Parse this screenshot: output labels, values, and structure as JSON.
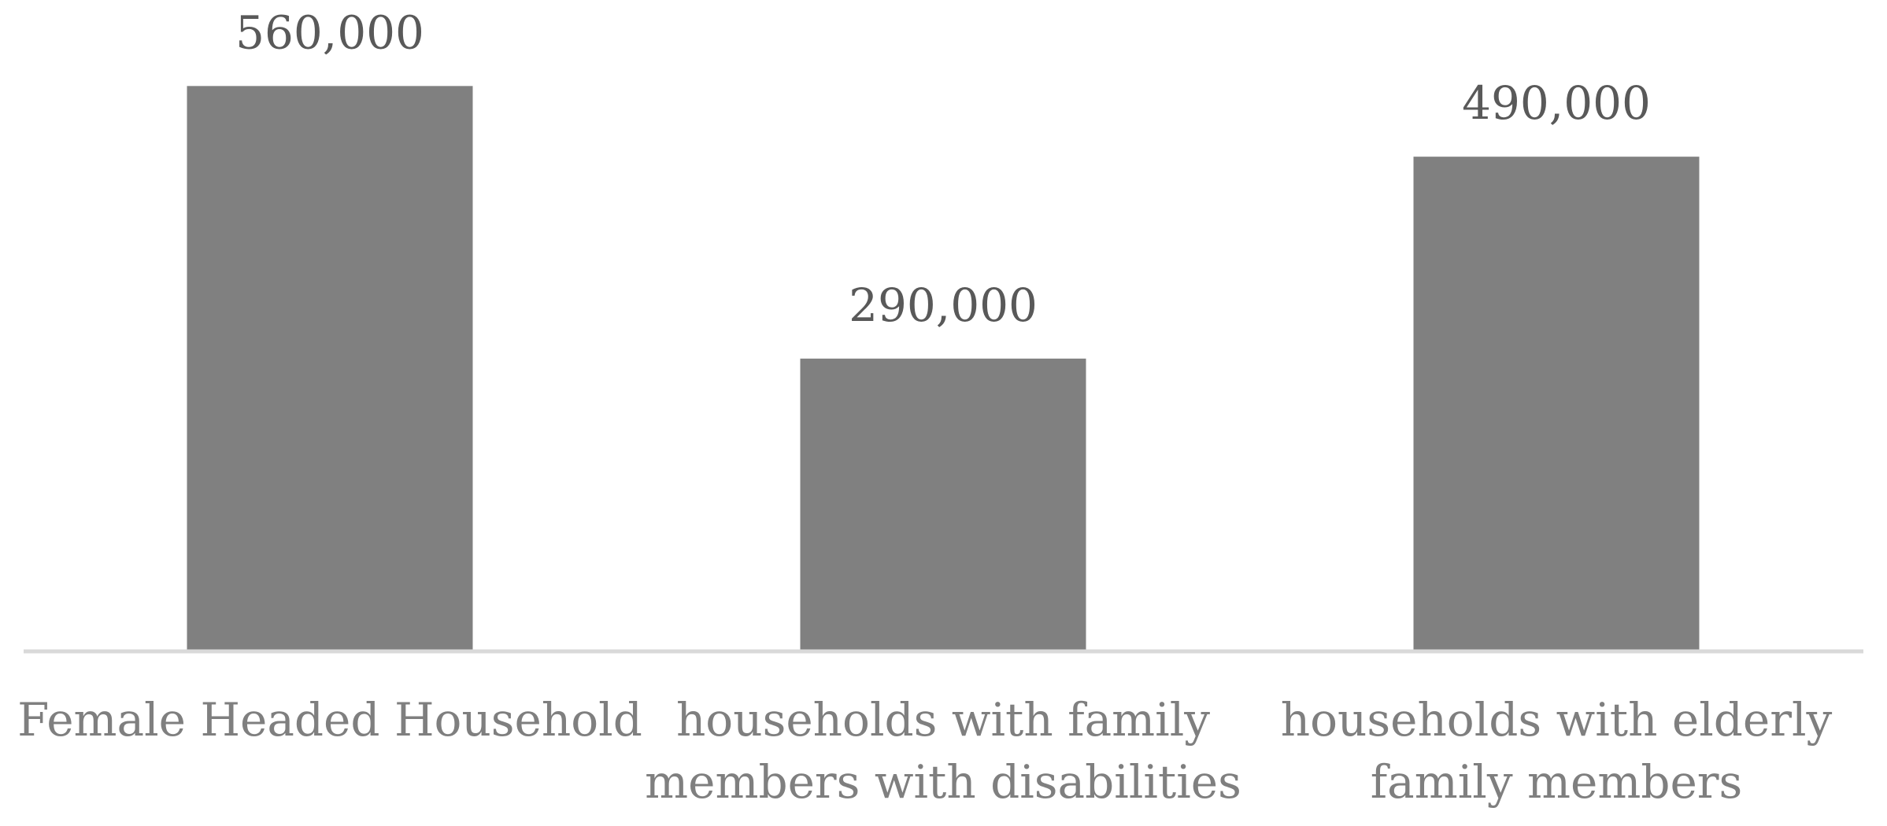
{
  "chart_data": {
    "type": "bar",
    "title": "",
    "xlabel": "",
    "ylabel": "",
    "categories": [
      [
        "Female Headed Household"
      ],
      [
        "households with family",
        "members with disabilities"
      ],
      [
        "households with elderly",
        "family members"
      ]
    ],
    "values": [
      560000,
      290000,
      490000
    ],
    "value_labels": [
      "560,000",
      "290,000",
      "490,000"
    ],
    "ylim": [
      0,
      600000
    ],
    "grid": false,
    "legend": "none",
    "bar_color": "#808080",
    "axis_color": "#d9d9d9"
  }
}
